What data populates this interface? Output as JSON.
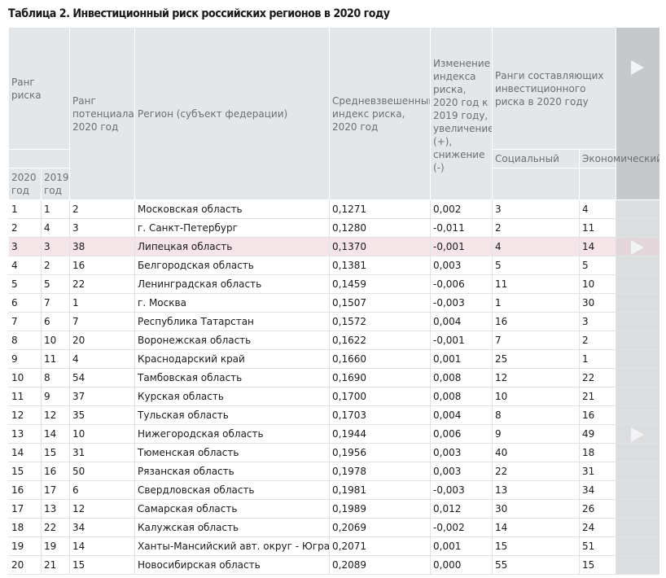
{
  "title": "Таблица 2. Инвестиционный риск российских регионов в 2020 году",
  "header": {
    "rank_risk": "Ранг риска",
    "rank_potential": "Ранг потенциала, 2020 год",
    "region": "Регион (субъект федерации)",
    "weighted_index": "Средневзвешенный индекс риска, 2020 год",
    "index_change": "Изменение индекса риска, 2020 год к 2019 году, увеличение (+), снижение (-)",
    "component_ranks": "Ранги составляющих инвестиционного риска в 2020 году",
    "social": "Социальный",
    "economic": "Экономический",
    "year_2020": "2020 год",
    "year_2019": "2019 год"
  },
  "nav": {
    "arrow_icon": "play-triangle-icon"
  },
  "rows": [
    {
      "r2020": "1",
      "r2019": "1",
      "pot": "2",
      "region": "Московская область",
      "idx": "0,1271",
      "chg": "0,002",
      "soc": "3",
      "eco": "4"
    },
    {
      "r2020": "2",
      "r2019": "4",
      "pot": "3",
      "region": "г. Санкт-Петербург",
      "idx": "0,1280",
      "chg": "-0,011",
      "soc": "2",
      "eco": "11"
    },
    {
      "r2020": "3",
      "r2019": "3",
      "pot": "38",
      "region": "Липецкая область",
      "idx": "0,1370",
      "chg": "-0,001",
      "soc": "4",
      "eco": "14"
    },
    {
      "r2020": "4",
      "r2019": "2",
      "pot": "16",
      "region": "Белгородская область",
      "idx": "0,1381",
      "chg": "0,003",
      "soc": "5",
      "eco": "5"
    },
    {
      "r2020": "5",
      "r2019": "5",
      "pot": "22",
      "region": "Ленинградская область",
      "idx": "0,1459",
      "chg": "-0,006",
      "soc": "11",
      "eco": "10"
    },
    {
      "r2020": "6",
      "r2019": "7",
      "pot": "1",
      "region": "г. Москва",
      "idx": "0,1507",
      "chg": "-0,003",
      "soc": "1",
      "eco": "30"
    },
    {
      "r2020": "7",
      "r2019": "6",
      "pot": "7",
      "region": "Республика Татарстан",
      "idx": "0,1572",
      "chg": "0,004",
      "soc": "16",
      "eco": "3"
    },
    {
      "r2020": "8",
      "r2019": "10",
      "pot": "20",
      "region": "Воронежская область",
      "idx": "0,1622",
      "chg": "-0,001",
      "soc": "7",
      "eco": "2"
    },
    {
      "r2020": "9",
      "r2019": "11",
      "pot": "4",
      "region": "Краснодарский край",
      "idx": "0,1660",
      "chg": "0,001",
      "soc": "25",
      "eco": "1"
    },
    {
      "r2020": "10",
      "r2019": "8",
      "pot": "54",
      "region": "Тамбовская область",
      "idx": "0,1690",
      "chg": "0,008",
      "soc": "12",
      "eco": "22"
    },
    {
      "r2020": "11",
      "r2019": "9",
      "pot": "37",
      "region": "Курская область",
      "idx": "0,1700",
      "chg": "0,008",
      "soc": "10",
      "eco": "21"
    },
    {
      "r2020": "12",
      "r2019": "12",
      "pot": "35",
      "region": "Тульская область",
      "idx": "0,1703",
      "chg": "0,004",
      "soc": "8",
      "eco": "16"
    },
    {
      "r2020": "13",
      "r2019": "14",
      "pot": "10",
      "region": "Нижегородская область",
      "idx": "0,1944",
      "chg": "0,006",
      "soc": "9",
      "eco": "49"
    },
    {
      "r2020": "14",
      "r2019": "15",
      "pot": "31",
      "region": "Тюменская область",
      "idx": "0,1956",
      "chg": "0,003",
      "soc": "40",
      "eco": "18"
    },
    {
      "r2020": "15",
      "r2019": "16",
      "pot": "50",
      "region": "Рязанская область",
      "idx": "0,1978",
      "chg": "0,003",
      "soc": "22",
      "eco": "31"
    },
    {
      "r2020": "16",
      "r2019": "17",
      "pot": "6",
      "region": "Свердловская область",
      "idx": "0,1981",
      "chg": "-0,003",
      "soc": "13",
      "eco": "34"
    },
    {
      "r2020": "17",
      "r2019": "13",
      "pot": "12",
      "region": "Самарская область",
      "idx": "0,1989",
      "chg": "0,012",
      "soc": "30",
      "eco": "26"
    },
    {
      "r2020": "18",
      "r2019": "22",
      "pot": "34",
      "region": "Калужская область",
      "idx": "0,2069",
      "chg": "-0,002",
      "soc": "14",
      "eco": "24"
    },
    {
      "r2020": "19",
      "r2019": "19",
      "pot": "14",
      "region": "Ханты-Мансийский авт. округ - Югра",
      "idx": "0,2071",
      "chg": "0,001",
      "soc": "15",
      "eco": "51"
    },
    {
      "r2020": "20",
      "r2019": "21",
      "pot": "15",
      "region": "Новосибирская область",
      "idx": "0,2089",
      "chg": "0,000",
      "soc": "55",
      "eco": "15"
    }
  ],
  "highlighted_row": 2,
  "arrow_rows": [
    2,
    12
  ],
  "colors": {
    "header_bg": "#e3e7ea",
    "header_text": "#6b6f73",
    "nav_column": "#c6c9cc",
    "highlight_row": "#f5e4e8",
    "row_border": "#dfe3e6"
  }
}
